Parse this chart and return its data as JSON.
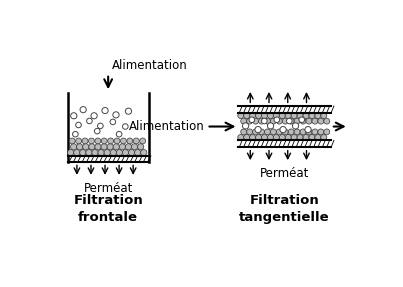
{
  "bg_color": "#ffffff",
  "text_color": "#000000",
  "left_alim": "Alimentation",
  "left_permeat": "Perméat",
  "left_bottom": "Filtration\nfrontale",
  "right_alim": "Alimentation",
  "right_permeat": "Perméat",
  "right_bottom": "Filtration\ntangentielle",
  "font_size_alim": 8.5,
  "font_size_permeat": 8.5,
  "font_size_bottom": 9.5,
  "particle_color": "#dddddd",
  "particle_edge": "#444444",
  "dense_particle_color": "#bbbbbb",
  "dense_particle_edge": "#333333"
}
